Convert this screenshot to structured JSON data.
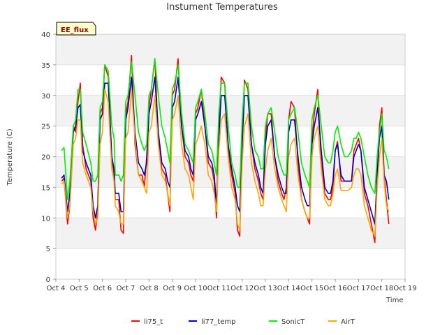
{
  "chart_data": {
    "type": "line",
    "title": "Instument Temperatures",
    "xlabel": "Time",
    "ylabel": "Temperature (C)",
    "badge": "EE_flux",
    "xlim": [
      4,
      19
    ],
    "ylim": [
      0,
      40
    ],
    "x_ticks": [
      {
        "value": 4,
        "label": "Oct 4"
      },
      {
        "value": 5,
        "label": "Oct 5"
      },
      {
        "value": 6,
        "label": "Oct 6"
      },
      {
        "value": 7,
        "label": "Oct 7"
      },
      {
        "value": 8,
        "label": "Oct 8"
      },
      {
        "value": 9,
        "label": "Oct 9"
      },
      {
        "value": 10,
        "label": "Oct 10"
      },
      {
        "value": 11,
        "label": "Oct 11"
      },
      {
        "value": 12,
        "label": "Oct 12"
      },
      {
        "value": 13,
        "label": "Oct 13"
      },
      {
        "value": 14,
        "label": "Oct 14"
      },
      {
        "value": 15,
        "label": "Oct 15"
      },
      {
        "value": 16,
        "label": "Oct 16"
      },
      {
        "value": 17,
        "label": "Oct 17"
      },
      {
        "value": 18,
        "label": "Oct 18"
      },
      {
        "value": 19,
        "label": "Oct 19"
      }
    ],
    "y_ticks": [
      0,
      5,
      10,
      15,
      20,
      25,
      30,
      35,
      40
    ],
    "grid": true,
    "legend_position": "bottom",
    "series": [
      {
        "name": "li75_t",
        "color": "#ff0000",
        "x": [
          4.25,
          4.35,
          4.5,
          4.6,
          4.75,
          4.85,
          4.95,
          5.05,
          5.15,
          5.3,
          5.5,
          5.6,
          5.7,
          5.8,
          5.9,
          6.0,
          6.1,
          6.25,
          6.4,
          6.5,
          6.55,
          6.7,
          6.8,
          6.9,
          7.0,
          7.1,
          7.25,
          7.4,
          7.55,
          7.7,
          7.8,
          7.9,
          8.0,
          8.1,
          8.25,
          8.4,
          8.55,
          8.7,
          8.8,
          8.9,
          9.0,
          9.1,
          9.25,
          9.4,
          9.55,
          9.7,
          9.8,
          9.9,
          10.0,
          10.1,
          10.25,
          10.4,
          10.55,
          10.7,
          10.8,
          10.9,
          11.0,
          11.1,
          11.25,
          11.4,
          11.55,
          11.7,
          11.8,
          11.9,
          12.0,
          12.1,
          12.25,
          12.4,
          12.55,
          12.7,
          12.8,
          12.9,
          13.0,
          13.1,
          13.25,
          13.4,
          13.55,
          13.7,
          13.8,
          13.9,
          14.0,
          14.1,
          14.25,
          14.4,
          14.55,
          14.7,
          14.8,
          14.9,
          15.0,
          15.1,
          15.25,
          15.4,
          15.55,
          15.7,
          15.8,
          15.9,
          16.0,
          16.1,
          16.25,
          16.4,
          16.55,
          16.7,
          16.8,
          16.9,
          17.0,
          17.1,
          17.25,
          17.4,
          17.55,
          17.7,
          17.8,
          17.9,
          18.0,
          18.1,
          18.2,
          18.3
        ],
        "y": [
          16,
          16.5,
          9,
          12,
          25,
          24,
          29,
          32,
          22,
          18,
          16,
          10,
          8,
          11,
          27,
          28,
          35,
          33,
          20,
          17,
          13,
          13,
          8,
          7.5,
          27,
          29,
          36.5,
          22,
          17,
          17,
          15,
          20,
          28,
          31,
          36,
          23,
          18,
          17,
          14,
          11,
          30,
          31,
          36,
          25,
          20,
          19,
          17,
          16,
          27,
          28,
          31,
          25,
          19,
          18,
          16,
          10,
          24,
          33,
          32,
          21,
          17,
          14,
          8,
          7,
          22,
          32.5,
          31,
          22,
          18,
          16,
          14,
          13,
          23,
          27,
          27,
          20,
          16,
          14,
          13,
          15,
          26,
          29,
          28,
          19,
          13,
          11,
          10,
          9,
          23,
          27,
          31,
          19,
          14,
          13,
          13,
          15,
          21,
          22.5,
          16,
          16,
          16,
          16,
          21,
          22,
          23,
          21,
          14,
          12,
          9,
          6,
          18,
          25,
          28,
          17,
          13,
          9
        ]
      },
      {
        "name": "li77_temp",
        "color": "#0000cc",
        "x": [
          4.25,
          4.35,
          4.5,
          4.6,
          4.75,
          4.85,
          4.95,
          5.05,
          5.15,
          5.3,
          5.5,
          5.6,
          5.7,
          5.8,
          5.9,
          6.0,
          6.1,
          6.25,
          6.4,
          6.5,
          6.55,
          6.7,
          6.8,
          6.9,
          7.0,
          7.1,
          7.25,
          7.4,
          7.55,
          7.7,
          7.8,
          7.9,
          8.0,
          8.1,
          8.25,
          8.4,
          8.55,
          8.7,
          8.8,
          8.9,
          9.0,
          9.1,
          9.25,
          9.4,
          9.55,
          9.7,
          9.8,
          9.9,
          10.0,
          10.1,
          10.25,
          10.4,
          10.55,
          10.7,
          10.8,
          10.9,
          11.0,
          11.1,
          11.25,
          11.4,
          11.55,
          11.7,
          11.8,
          11.9,
          12.0,
          12.1,
          12.25,
          12.4,
          12.55,
          12.7,
          12.8,
          12.9,
          13.0,
          13.1,
          13.25,
          13.4,
          13.55,
          13.7,
          13.8,
          13.9,
          14.0,
          14.1,
          14.25,
          14.4,
          14.55,
          14.7,
          14.8,
          14.9,
          15.0,
          15.1,
          15.25,
          15.4,
          15.55,
          15.7,
          15.8,
          15.9,
          16.0,
          16.1,
          16.25,
          16.4,
          16.55,
          16.7,
          16.8,
          16.9,
          17.0,
          17.1,
          17.25,
          17.4,
          17.55,
          17.7,
          17.8,
          17.9,
          18.0,
          18.1,
          18.2,
          18.3
        ],
        "y": [
          16.5,
          17,
          11,
          14,
          24,
          25,
          28,
          28.5,
          21,
          19,
          17,
          12,
          10,
          12,
          26,
          27,
          32,
          32,
          20,
          18,
          14,
          14,
          11,
          11,
          26,
          28,
          33,
          24,
          19,
          18,
          17,
          19,
          27,
          29,
          33,
          24,
          19,
          18,
          16,
          15,
          28,
          29,
          33,
          25,
          21,
          20,
          18,
          17,
          26,
          27,
          29,
          25,
          20,
          19,
          17,
          12,
          23,
          30,
          30,
          22,
          18,
          15,
          12,
          11,
          22,
          30,
          30,
          22,
          19,
          17,
          15,
          14,
          22,
          25,
          26,
          20,
          17,
          15,
          14,
          14,
          24,
          26,
          26,
          20,
          15,
          13,
          12,
          12,
          22,
          25,
          28,
          21,
          15,
          14,
          14,
          16,
          21,
          22,
          17,
          16,
          16,
          16,
          20,
          21,
          22,
          21,
          15,
          13,
          11,
          9,
          17,
          23,
          25,
          17,
          16,
          13
        ]
      },
      {
        "name": "SonicT",
        "color": "#00ee00",
        "x": [
          4.25,
          4.35,
          4.5,
          4.6,
          4.75,
          4.85,
          4.95,
          5.05,
          5.15,
          5.3,
          5.5,
          5.6,
          5.7,
          5.8,
          5.9,
          6.0,
          6.1,
          6.25,
          6.4,
          6.5,
          6.55,
          6.7,
          6.8,
          6.9,
          7.0,
          7.1,
          7.25,
          7.4,
          7.55,
          7.7,
          7.8,
          7.9,
          8.0,
          8.1,
          8.25,
          8.4,
          8.55,
          8.7,
          8.8,
          8.9,
          9.0,
          9.1,
          9.25,
          9.4,
          9.55,
          9.7,
          9.8,
          9.9,
          10.0,
          10.1,
          10.25,
          10.4,
          10.55,
          10.7,
          10.8,
          10.9,
          11.0,
          11.1,
          11.25,
          11.4,
          11.55,
          11.7,
          11.8,
          11.9,
          12.0,
          12.1,
          12.25,
          12.4,
          12.55,
          12.7,
          12.8,
          12.9,
          13.0,
          13.1,
          13.25,
          13.4,
          13.55,
          13.7,
          13.8,
          13.9,
          14.0,
          14.1,
          14.25,
          14.4,
          14.55,
          14.7,
          14.8,
          14.9,
          15.0,
          15.1,
          15.25,
          15.4,
          15.55,
          15.7,
          15.8,
          15.9,
          16.0,
          16.1,
          16.25,
          16.4,
          16.55,
          16.7,
          16.8,
          16.9,
          17.0,
          17.1,
          17.25,
          17.4,
          17.55,
          17.7,
          17.8,
          17.9,
          18.0,
          18.1,
          18.2,
          18.3
        ],
        "y": [
          21,
          21.5,
          13,
          16,
          25,
          26,
          31,
          31,
          24,
          22,
          19,
          16,
          16,
          17,
          28,
          29,
          35,
          34,
          25,
          23,
          17,
          17,
          16,
          17,
          29,
          30,
          35.5,
          30,
          24,
          22,
          21,
          22,
          30,
          31,
          36,
          30,
          25,
          23,
          21,
          19,
          31,
          32,
          35,
          27,
          22,
          21,
          20,
          19,
          28,
          29,
          31,
          27,
          22,
          21,
          19,
          17,
          27,
          32,
          32,
          25,
          19,
          17,
          15,
          15,
          26,
          32,
          32,
          25,
          21,
          20,
          18,
          18,
          25,
          27,
          28,
          24,
          20,
          18,
          17,
          17,
          26,
          27,
          28,
          24,
          19,
          17,
          16,
          15,
          26,
          28,
          30,
          25,
          20,
          19,
          19,
          21,
          24,
          25,
          22,
          20,
          20,
          21,
          23,
          23,
          24,
          23,
          20,
          17,
          15,
          14,
          20,
          24,
          27,
          21,
          20,
          18
        ]
      },
      {
        "name": "AirT",
        "color": "#ffa500",
        "x": [
          4.25,
          4.35,
          4.5,
          4.6,
          4.75,
          4.85,
          4.95,
          5.05,
          5.15,
          5.3,
          5.5,
          5.6,
          5.7,
          5.8,
          5.9,
          6.0,
          6.1,
          6.25,
          6.4,
          6.5,
          6.55,
          6.7,
          6.8,
          6.9,
          7.0,
          7.1,
          7.25,
          7.4,
          7.55,
          7.7,
          7.8,
          7.9,
          8.0,
          8.1,
          8.25,
          8.4,
          8.55,
          8.7,
          8.8,
          8.9,
          9.0,
          9.1,
          9.25,
          9.4,
          9.55,
          9.7,
          9.8,
          9.9,
          10.0,
          10.1,
          10.25,
          10.4,
          10.55,
          10.7,
          10.8,
          10.9,
          11.0,
          11.1,
          11.25,
          11.4,
          11.55,
          11.7,
          11.8,
          11.9,
          12.0,
          12.1,
          12.25,
          12.4,
          12.55,
          12.7,
          12.8,
          12.9,
          13.0,
          13.1,
          13.25,
          13.4,
          13.55,
          13.7,
          13.8,
          13.9,
          14.0,
          14.1,
          14.25,
          14.4,
          14.55,
          14.7,
          14.8,
          14.9,
          15.0,
          15.1,
          15.25,
          15.4,
          15.55,
          15.7,
          15.8,
          15.9,
          16.0,
          16.1,
          16.25,
          16.4,
          16.55,
          16.7,
          16.8,
          16.9,
          17.0,
          17.1,
          17.25,
          17.4,
          17.55,
          17.7,
          17.8,
          17.9,
          18.0,
          18.1,
          18.2,
          18.3
        ],
        "y": [
          15.5,
          16,
          10,
          12,
          22,
          23,
          26,
          26,
          19,
          17,
          15,
          11,
          9,
          10,
          22,
          24,
          31,
          29,
          18,
          16,
          12,
          11,
          9,
          9,
          23,
          24,
          31,
          23,
          17,
          16,
          15,
          14,
          24,
          25,
          30,
          22,
          17,
          16,
          14,
          12,
          26,
          27,
          30,
          22,
          18,
          17,
          15,
          13,
          22,
          23,
          25,
          22,
          17,
          16,
          14,
          11,
          21,
          26,
          27,
          20,
          15,
          13,
          9,
          8,
          19,
          25,
          27,
          19,
          16,
          14,
          12,
          12,
          18,
          21,
          23,
          18,
          15,
          13,
          12,
          11,
          20,
          22,
          23,
          17,
          13,
          11,
          10,
          10,
          20,
          23,
          25,
          18,
          13,
          12,
          12,
          14,
          17,
          18,
          14.5,
          14.5,
          14.5,
          15,
          17,
          18,
          18,
          17,
          12,
          10,
          8,
          7,
          15,
          20,
          23,
          16,
          12,
          11
        ]
      }
    ]
  }
}
